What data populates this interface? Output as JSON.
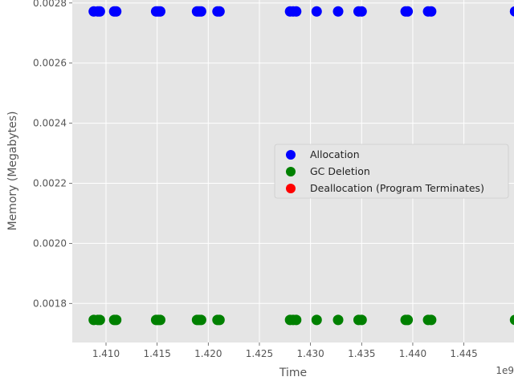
{
  "chart_data": {
    "type": "scatter",
    "xlabel": "Time",
    "ylabel": "Memory (Megabytes)",
    "x_offset_label": "1e9",
    "xlim": [
      1.4067,
      1.4499
    ],
    "ylim": [
      0.00167,
      0.00281
    ],
    "x_ticks": [
      1.41,
      1.415,
      1.42,
      1.425,
      1.43,
      1.435,
      1.44,
      1.445
    ],
    "x_tick_labels": [
      "1.410",
      "1.415",
      "1.420",
      "1.425",
      "1.430",
      "1.435",
      "1.440",
      "1.445"
    ],
    "y_ticks": [
      0.0018,
      0.002,
      0.0022,
      0.0024,
      0.0026,
      0.0028
    ],
    "y_tick_labels": [
      "0.0018",
      "0.0020",
      "0.0022",
      "0.0024",
      "0.0026",
      "0.0028"
    ],
    "grid": true,
    "legend_position": "center-right",
    "x_values": [
      1.4088,
      1.4092,
      1.4094,
      1.4108,
      1.411,
      1.4149,
      1.4151,
      1.4153,
      1.4189,
      1.4191,
      1.4193,
      1.4209,
      1.4211,
      1.428,
      1.4283,
      1.4286,
      1.4306,
      1.4327,
      1.4347,
      1.435,
      1.4393,
      1.4395,
      1.4415,
      1.4418,
      1.45
    ],
    "series": [
      {
        "name": "Allocation",
        "color": "#0000ff",
        "y": 0.002772
      },
      {
        "name": "GC Deletion",
        "color": "#008000",
        "y": 0.001745
      },
      {
        "name": "Deallocation (Program Terminates)",
        "color": "#ff0000",
        "y": null
      }
    ]
  }
}
